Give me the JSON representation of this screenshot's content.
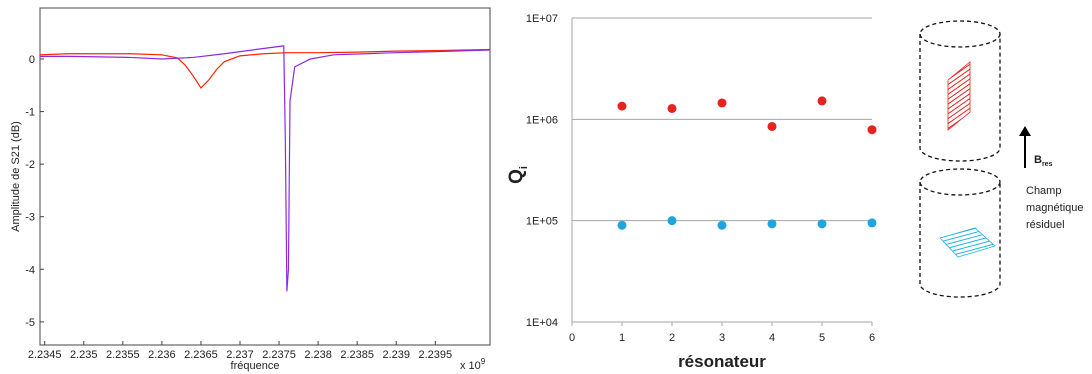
{
  "chart_data": [
    {
      "type": "line",
      "y_label": "Amplitude de S21 (dB)",
      "x_label": "fréquence",
      "x_multiplier": "x 10",
      "x_multiplier_exp": "9",
      "xlim": [
        2.23444,
        2.2402
      ],
      "ylim": [
        -5.44,
        0.97
      ],
      "xticks": [
        2.2345,
        2.235,
        2.2355,
        2.236,
        2.2365,
        2.237,
        2.2375,
        2.238,
        2.2385,
        2.239,
        2.2395
      ],
      "yticks": [
        -5,
        -4,
        -3,
        -2,
        -1,
        0
      ],
      "series": [
        {
          "color": "#ff2200",
          "x": [
            2.23444,
            2.2348,
            2.2352,
            2.2356,
            2.236,
            2.2362,
            2.2363,
            2.2364,
            2.2365,
            2.2366,
            2.2367,
            2.2368,
            2.237,
            2.2373,
            2.2376,
            2.238,
            2.2385,
            2.239,
            2.2395,
            2.2402
          ],
          "values": [
            0.08,
            0.1,
            0.1,
            0.1,
            0.08,
            0.02,
            -0.12,
            -0.32,
            -0.55,
            -0.4,
            -0.2,
            -0.05,
            0.06,
            0.1,
            0.12,
            0.12,
            0.13,
            0.15,
            0.16,
            0.18
          ]
        },
        {
          "color": "#8a2be2",
          "x": [
            2.23444,
            2.2348,
            2.2352,
            2.2356,
            2.236,
            2.2364,
            2.2368,
            2.2372,
            2.23756,
            2.23758,
            2.2376,
            2.23762,
            2.23764,
            2.2377,
            2.2379,
            2.2382,
            2.2386,
            2.239,
            2.2395,
            2.2402
          ],
          "values": [
            0.05,
            0.05,
            0.04,
            0.03,
            0.0,
            0.03,
            0.1,
            0.18,
            0.25,
            -1.5,
            -4.42,
            -4.0,
            -0.8,
            -0.15,
            0.0,
            0.08,
            0.1,
            0.12,
            0.14,
            0.17
          ]
        }
      ]
    },
    {
      "type": "scatter",
      "log_y": true,
      "grid": true,
      "y_label": "Q",
      "y_label_sub": "i",
      "x_label": "résonateur",
      "xlim": [
        0,
        6
      ],
      "ylim": [
        10000,
        10000000
      ],
      "xticks": [
        0,
        1,
        2,
        3,
        4,
        5,
        6
      ],
      "yticks": [
        {
          "value": 10000,
          "label": "1E+04"
        },
        {
          "value": 100000,
          "label": "1E+05"
        },
        {
          "value": 1000000,
          "label": "1E+06"
        },
        {
          "value": 10000000,
          "label": "1E+07"
        }
      ],
      "series": [
        {
          "color": "#e8231f",
          "x": [
            1,
            2,
            3,
            4,
            5,
            6
          ],
          "values": [
            1350000,
            1280000,
            1450000,
            850000,
            1520000,
            790000
          ]
        },
        {
          "color": "#1fa4dc",
          "x": [
            1,
            2,
            3,
            4,
            5,
            6
          ],
          "values": [
            90000,
            100000,
            90000,
            93000,
            93000,
            95000
          ]
        }
      ]
    }
  ],
  "diagram": {
    "field_symbol": "B",
    "field_sub": "res",
    "caption": [
      "Champ",
      "magnétique",
      "résiduel"
    ]
  }
}
